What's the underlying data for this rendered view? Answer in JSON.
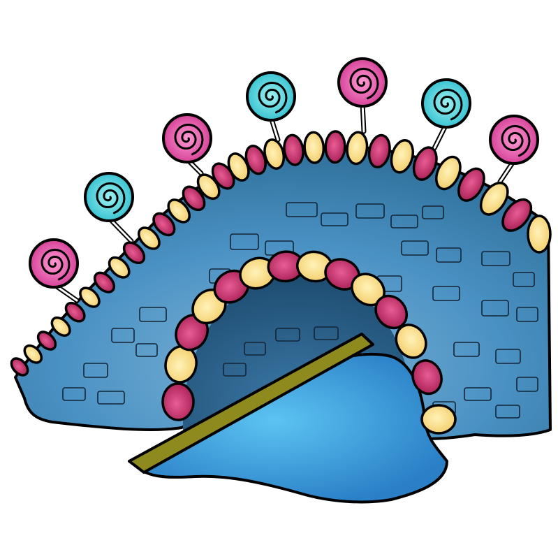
{
  "scene": {
    "subject": "candy-bridge-illustration",
    "colors": {
      "background": "#ffffff",
      "wall": "#4a92c4",
      "wall_light": "#7fb3d6",
      "wall_dark": "#2f6f99",
      "arch_shadow": "#1f5074",
      "water": "#2e95da",
      "water_glow": "#5cc3f2",
      "plank": "#8e8a1e",
      "plank_dark": "#5f5c10",
      "bead_pink": "#d02d6a",
      "bead_pink_dark": "#9e1d4f",
      "bead_cream": "#fbe08b",
      "lollipop_pink": "#ec4fa9",
      "lollipop_teal": "#3fd0d8",
      "stick": "#ffffff"
    },
    "lollipops": [
      "pink",
      "teal",
      "pink",
      "teal",
      "pink",
      "teal",
      "pink"
    ],
    "bead_pattern": [
      "pink",
      "cream"
    ]
  }
}
